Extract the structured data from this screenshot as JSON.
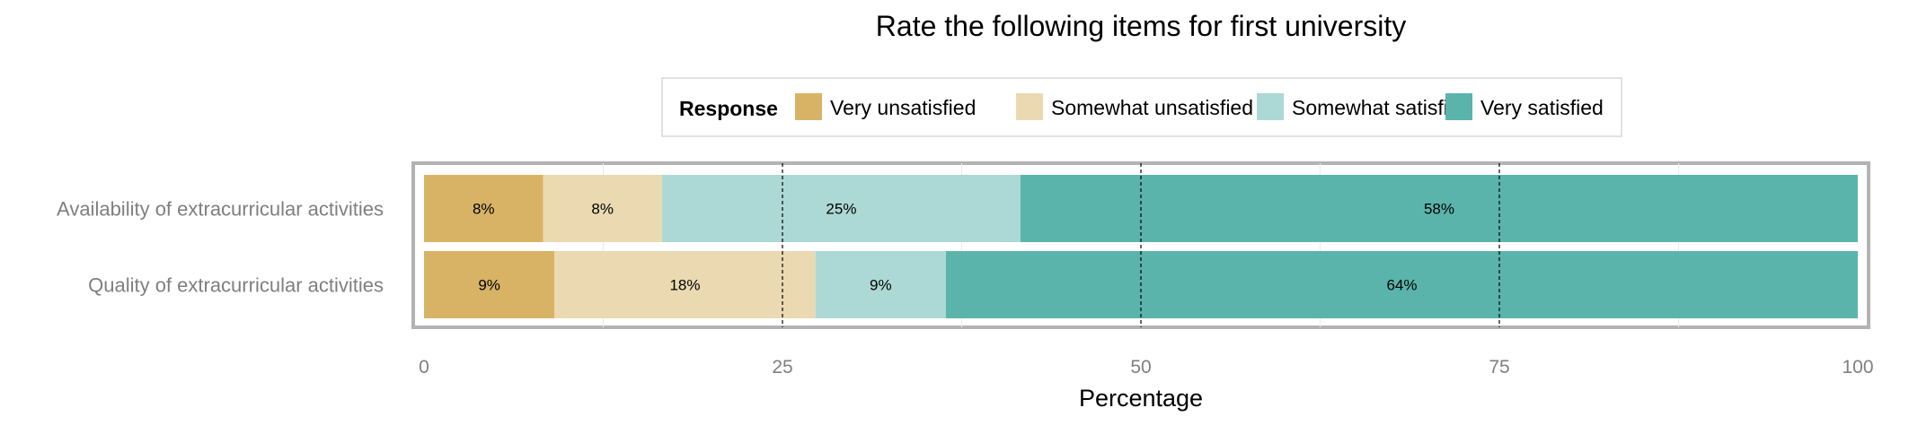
{
  "chart_data": {
    "type": "bar",
    "orientation": "horizontal",
    "stacked": true,
    "title": "Rate the following items for first university",
    "xlabel": "Percentage",
    "ylabel": "",
    "xlim": [
      0,
      100
    ],
    "xticks": [
      "0",
      "25",
      "50",
      "75",
      "100"
    ],
    "reference_lines": [
      25,
      50,
      75
    ],
    "grid": true,
    "legend": {
      "title": "Response",
      "position": "top",
      "entries": [
        "Very unsatisfied",
        "Somewhat unsatisfied",
        "Somewhat satisfied",
        "Very satisfied"
      ]
    },
    "categories": [
      "Availability of extracurricular activities",
      "Quality of extracurricular activities"
    ],
    "series": [
      {
        "name": "Very unsatisfied",
        "color": "#d8b365",
        "values": [
          8.3,
          9.1
        ],
        "labels": [
          "8%",
          "9%"
        ]
      },
      {
        "name": "Somewhat unsatisfied",
        "color": "#ebd9b2",
        "values": [
          8.3,
          18.2
        ],
        "labels": [
          "8%",
          "18%"
        ]
      },
      {
        "name": "Somewhat satisfied",
        "color": "#acd9d5",
        "values": [
          25.0,
          9.1
        ],
        "labels": [
          "25%",
          "9%"
        ]
      },
      {
        "name": "Very satisfied",
        "color": "#5ab4ac",
        "values": [
          58.4,
          63.6
        ],
        "labels": [
          "58%",
          "64%"
        ]
      }
    ]
  }
}
